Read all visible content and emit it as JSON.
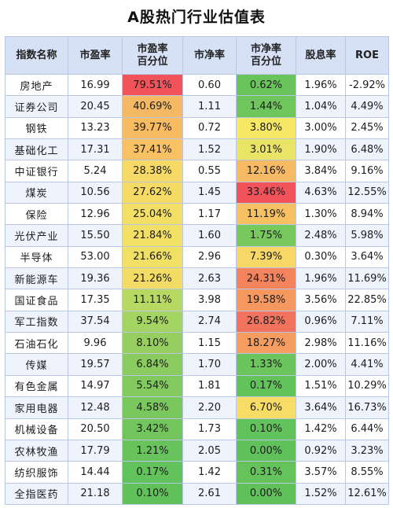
{
  "title": "A股热门行业估值表",
  "headers": [
    {
      "line1": "指数名称",
      "line2": ""
    },
    {
      "line1": "市盈率",
      "line2": ""
    },
    {
      "line1": "市盈率",
      "line2": "百分位"
    },
    {
      "line1": "市净率",
      "line2": ""
    },
    {
      "line1": "市净率",
      "line2": "百分位"
    },
    {
      "line1": "股息率",
      "line2": ""
    },
    {
      "line1": "ROE",
      "line2": ""
    }
  ],
  "rows": [
    {
      "name": "房地产",
      "pe": "16.99",
      "pe_pct": "79.51%",
      "pb": "0.60",
      "pb_pct": "0.62%",
      "dy": "1.96%",
      "roe": "-2.92%",
      "pe_color": "#f0545a",
      "pb_color": "#69c45c"
    },
    {
      "name": "证券公司",
      "pe": "20.45",
      "pe_pct": "40.69%",
      "pb": "1.11",
      "pb_pct": "1.44%",
      "dy": "1.04%",
      "roe": "4.49%",
      "pe_color": "#f6b963",
      "pb_color": "#6fc65c"
    },
    {
      "name": "钢铁",
      "pe": "13.23",
      "pe_pct": "39.77%",
      "pb": "0.72",
      "pb_pct": "3.80%",
      "dy": "3.00%",
      "roe": "2.45%",
      "pe_color": "#f7bb62",
      "pb_color": "#f6e765"
    },
    {
      "name": "基础化工",
      "pe": "17.31",
      "pe_pct": "37.41%",
      "pb": "1.52",
      "pb_pct": "3.01%",
      "dy": "1.90%",
      "roe": "6.48%",
      "pe_color": "#f8c163",
      "pb_color": "#e9e366"
    },
    {
      "name": "中证银行",
      "pe": "5.24",
      "pe_pct": "28.38%",
      "pb": "0.55",
      "pb_pct": "12.16%",
      "dy": "3.84%",
      "roe": "9.16%",
      "pe_color": "#f6d966",
      "pb_color": "#f6b964"
    },
    {
      "name": "煤炭",
      "pe": "10.56",
      "pe_pct": "27.62%",
      "pb": "1.45",
      "pb_pct": "33.46%",
      "dy": "4.63%",
      "roe": "12.55%",
      "pe_color": "#f6da66",
      "pb_color": "#f0545a"
    },
    {
      "name": "保险",
      "pe": "12.96",
      "pe_pct": "25.04%",
      "pb": "1.17",
      "pb_pct": "11.19%",
      "dy": "1.30%",
      "roe": "8.94%",
      "pe_color": "#f3de66",
      "pb_color": "#f6c063"
    },
    {
      "name": "光伏产业",
      "pe": "15.50",
      "pe_pct": "21.84%",
      "pb": "1.60",
      "pb_pct": "1.75%",
      "dy": "2.48%",
      "roe": "5.98%",
      "pe_color": "#f2e066",
      "pb_color": "#78c95d"
    },
    {
      "name": "半导体",
      "pe": "53.00",
      "pe_pct": "21.66%",
      "pb": "2.96",
      "pb_pct": "7.39%",
      "dy": "0.30%",
      "roe": "3.64%",
      "pe_color": "#f1e066",
      "pb_color": "#f7d765"
    },
    {
      "name": "新能源车",
      "pe": "19.36",
      "pe_pct": "21.26%",
      "pb": "2.63",
      "pb_pct": "24.31%",
      "dy": "1.96%",
      "roe": "11.69%",
      "pe_color": "#f3dc66",
      "pb_color": "#f3845e"
    },
    {
      "name": "国证食品",
      "pe": "17.35",
      "pe_pct": "11.11%",
      "pb": "3.98",
      "pb_pct": "19.58%",
      "dy": "3.56%",
      "roe": "22.85%",
      "pe_color": "#b7d862",
      "pb_color": "#f5985f"
    },
    {
      "name": "军工指数",
      "pe": "37.54",
      "pe_pct": "9.54%",
      "pb": "2.74",
      "pb_pct": "26.82%",
      "dy": "0.96%",
      "roe": "7.11%",
      "pe_color": "#a4d461",
      "pb_color": "#f2735d"
    },
    {
      "name": "石油石化",
      "pe": "9.96",
      "pe_pct": "8.10%",
      "pb": "1.15",
      "pb_pct": "18.27%",
      "dy": "2.98%",
      "roe": "11.16%",
      "pe_color": "#96cf60",
      "pb_color": "#f59d60"
    },
    {
      "name": "传媒",
      "pe": "19.57",
      "pe_pct": "6.84%",
      "pb": "1.70",
      "pb_pct": "1.33%",
      "dy": "2.00%",
      "roe": "4.41%",
      "pe_color": "#8acc5f",
      "pb_color": "#6bc55c"
    },
    {
      "name": "有色金属",
      "pe": "14.97",
      "pe_pct": "5.54%",
      "pb": "1.81",
      "pb_pct": "0.17%",
      "dy": "1.51%",
      "roe": "10.29%",
      "pe_color": "#82c95e",
      "pb_color": "#63c35b"
    },
    {
      "name": "家用电器",
      "pe": "12.48",
      "pe_pct": "4.58%",
      "pb": "2.20",
      "pb_pct": "6.70%",
      "dy": "3.64%",
      "roe": "16.73%",
      "pe_color": "#7ac75e",
      "pb_color": "#f7dc66"
    },
    {
      "name": "机械设备",
      "pe": "20.50",
      "pe_pct": "3.42%",
      "pb": "1.73",
      "pb_pct": "0.10%",
      "dy": "1.42%",
      "roe": "6.44%",
      "pe_color": "#72c55d",
      "pb_color": "#62c25b"
    },
    {
      "name": "农林牧渔",
      "pe": "17.79",
      "pe_pct": "1.21%",
      "pb": "2.05",
      "pb_pct": "0.00%",
      "dy": "0.92%",
      "roe": "3.23%",
      "pe_color": "#68c35c",
      "pb_color": "#60c15b"
    },
    {
      "name": "纺织服饰",
      "pe": "14.44",
      "pe_pct": "0.17%",
      "pb": "1.42",
      "pb_pct": "0.31%",
      "dy": "3.57%",
      "roe": "8.55%",
      "pe_color": "#62c25b",
      "pb_color": "#64c35b"
    },
    {
      "name": "全指医药",
      "pe": "21.18",
      "pe_pct": "0.10%",
      "pb": "2.61",
      "pb_pct": "0.00%",
      "dy": "1.52%",
      "roe": "12.61%",
      "pe_color": "#61c25b",
      "pb_color": "#60c15b"
    }
  ]
}
